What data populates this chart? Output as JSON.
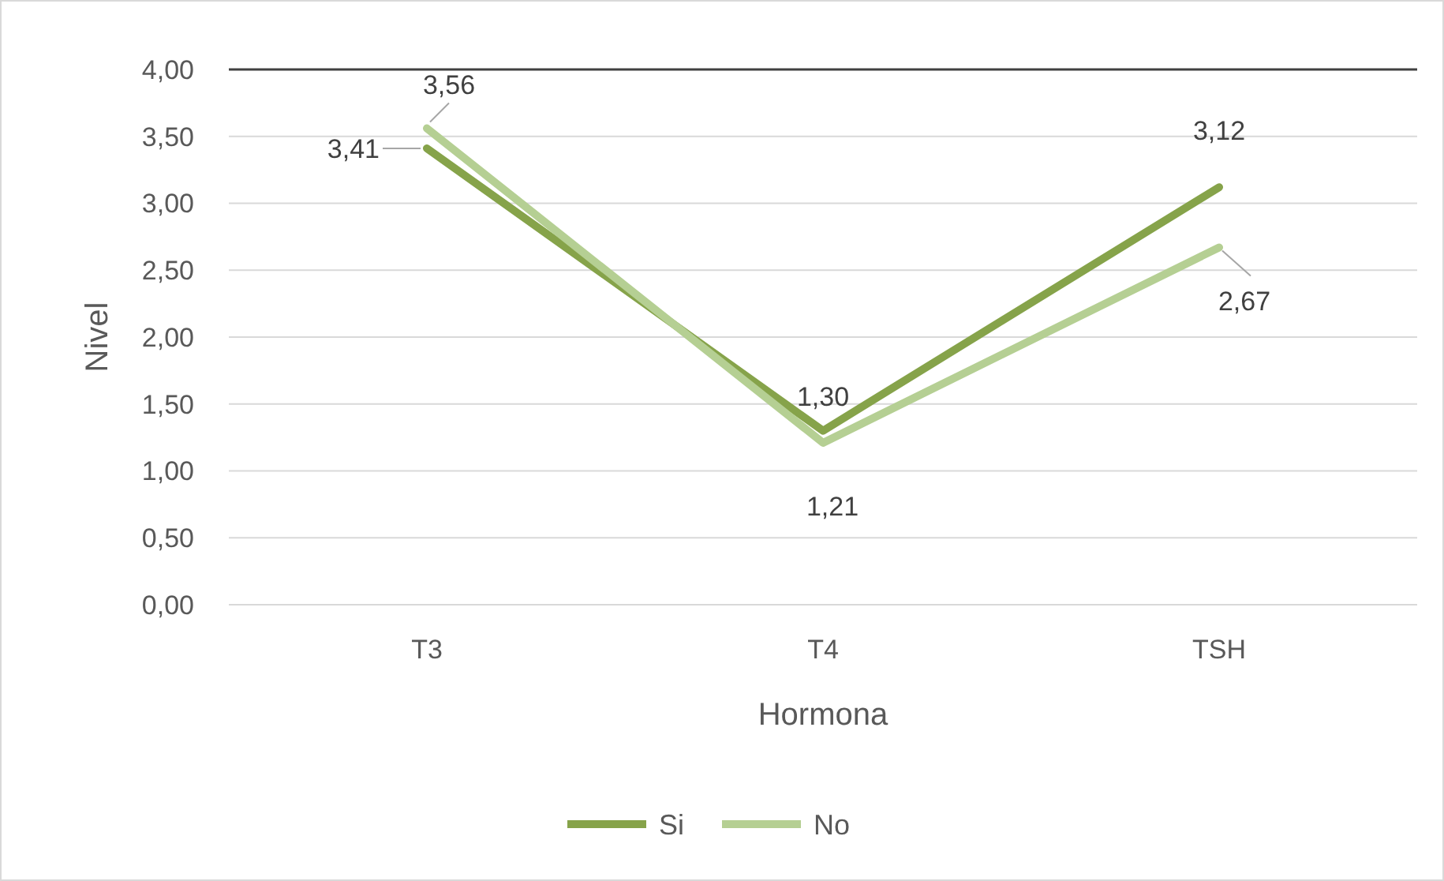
{
  "chart_data": {
    "type": "line",
    "xlabel": "Hormona",
    "ylabel": "Nivel",
    "categories": [
      "T3",
      "T4",
      "TSH"
    ],
    "series": [
      {
        "name": "Si",
        "color": "#86a34a",
        "values": [
          3.41,
          1.3,
          3.12
        ],
        "value_labels": [
          "3,41",
          "1,30",
          "3,12"
        ]
      },
      {
        "name": "No",
        "color": "#b5cf93",
        "values": [
          3.56,
          1.21,
          2.67
        ],
        "value_labels": [
          "3,56",
          "1,21",
          "2,67"
        ]
      }
    ],
    "ylim": [
      0,
      4
    ],
    "yticks": [
      {
        "value": 0,
        "label": "0,00"
      },
      {
        "value": 0.5,
        "label": "0,50"
      },
      {
        "value": 1,
        "label": "1,00"
      },
      {
        "value": 1.5,
        "label": "1,50"
      },
      {
        "value": 2,
        "label": "2,00"
      },
      {
        "value": 2.5,
        "label": "2,50"
      },
      {
        "value": 3,
        "label": "3,00"
      },
      {
        "value": 3.5,
        "label": "3,50"
      },
      {
        "value": 4,
        "label": "4,00"
      }
    ],
    "grid": "y",
    "legend": "bottom",
    "marker": "none",
    "line_style": "solid"
  }
}
